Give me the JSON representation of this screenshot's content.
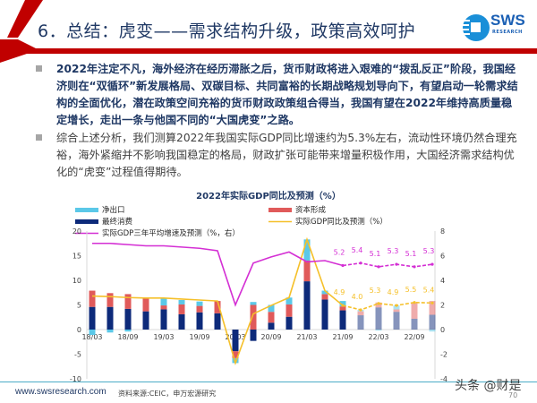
{
  "header": {
    "title": "6．总结：虎变——需求结构升级，政策高效呵护",
    "logo_text": "SWS",
    "logo_sub": "RESEARCH",
    "accent_color": "#c00000"
  },
  "bullets": [
    {
      "text": "2022年注定不凡，海外经济在经历滞胀之后，货币财政将进入艰难的“拨乱反正”阶段，我国经济则在“双循环”新发展格局、双碳目标、共同富裕的长期战略规划导向下，有望启动一轮需求结构的全面优化，潜在政策空间充裕的货币财政政策组合得当，我国有望在2022年维持高质量稳定增长，走出一条与他国不同的“大国虎变”之路。"
    },
    {
      "text": "综合上述分析，我们测算2022年我国实际GDP同比增速约为5.3%左右，流动性环境仍然合理充裕，海外紧缩并不影响我国稳定的格局，财政扩张可能带来增量积极作用，大国经济需求结构优化的“虎变”过程值得期待。"
    }
  ],
  "chart_data": {
    "type": "bar",
    "title": "2022年实际GDP同比及预测（%）",
    "stacked": true,
    "categories": [
      "18/03",
      "18/06",
      "18/09",
      "18/12",
      "19/03",
      "19/06",
      "19/09",
      "19/12",
      "20/03",
      "20/06",
      "20/09",
      "20/12",
      "21/03",
      "21/06",
      "21/09",
      "21/12",
      "22/03",
      "22/06",
      "22/09",
      "22/12"
    ],
    "x_tick_labels": [
      "18/03",
      "18/09",
      "19/03",
      "19/09",
      "20/03",
      "20/09",
      "21/03",
      "21/09",
      "22/03",
      "22/09"
    ],
    "forecast_from": "21/12",
    "ylim_left": [
      -10,
      20
    ],
    "yticks_left": [
      -10,
      -5,
      0,
      5,
      10,
      15,
      20
    ],
    "ylim_right": [
      -4,
      8
    ],
    "yticks_right": [
      -4,
      -2,
      0,
      2,
      4,
      6,
      8
    ],
    "legend_placement": "top",
    "grid": false,
    "series": [
      {
        "name": "净出口",
        "kind": "bar",
        "color": "#5bc8e8",
        "values": [
          -1.1,
          -0.6,
          -0.4,
          0.0,
          1.5,
          0.9,
          0.9,
          0.0,
          -1.0,
          0.6,
          1.4,
          1.4,
          4.3,
          0.7,
          1.1,
          0.3,
          -0.2,
          0.8,
          0.0,
          -0.4
        ]
      },
      {
        "name": "资本形成",
        "kind": "bar",
        "color": "#e05a5a",
        "values": [
          3.3,
          2.8,
          3.0,
          2.8,
          0.8,
          2.0,
          1.3,
          2.5,
          -1.4,
          5.0,
          2.2,
          2.5,
          4.2,
          1.1,
          0.8,
          0.8,
          1.0,
          0.5,
          3.3,
          2.8
        ]
      },
      {
        "name": "最终消费",
        "kind": "bar",
        "color": "#0d2a7a",
        "values": [
          4.6,
          4.6,
          4.2,
          3.7,
          4.1,
          3.1,
          3.5,
          3.3,
          -4.4,
          -2.3,
          1.4,
          2.6,
          9.8,
          6.1,
          3.9,
          2.9,
          4.5,
          3.6,
          2.2,
          3.0
        ]
      },
      {
        "name": "实际GDP同比及预测（%）",
        "kind": "line",
        "axis": "left",
        "color": "#f5c02a",
        "values": [
          6.8,
          6.7,
          6.5,
          6.4,
          6.4,
          6.2,
          6.0,
          5.8,
          -6.8,
          3.2,
          4.9,
          6.5,
          18.3,
          7.9,
          4.9,
          4.0,
          5.3,
          4.9,
          5.5,
          5.4
        ],
        "data_labels": {
          "21/09": "4.9",
          "21/12": "4.0",
          "22/03": "5.3",
          "22/06": "4.9",
          "22/09": "5.5",
          "22/12": "5.4"
        }
      },
      {
        "name": "实际GDP三年平均增速及预测（%，右）",
        "kind": "line",
        "axis": "right",
        "color": "#d42fd4",
        "values": [
          7.0,
          7.0,
          6.9,
          6.8,
          6.8,
          6.7,
          6.6,
          6.4,
          2.0,
          5.4,
          5.9,
          6.3,
          5.5,
          5.6,
          5.2,
          5.4,
          5.1,
          5.3,
          5.1,
          5.3
        ],
        "data_labels": {
          "21/09": "5.2",
          "21/12": "5.4",
          "22/03": "5.1",
          "22/06": "5.3",
          "22/09": "5.1",
          "22/12": "5.3"
        }
      }
    ]
  },
  "footer": {
    "website": "www.swsresearch.com",
    "source": "资料来源:CEIC，申万宏源研究",
    "watermark": "头条 @财是",
    "page": "70"
  }
}
